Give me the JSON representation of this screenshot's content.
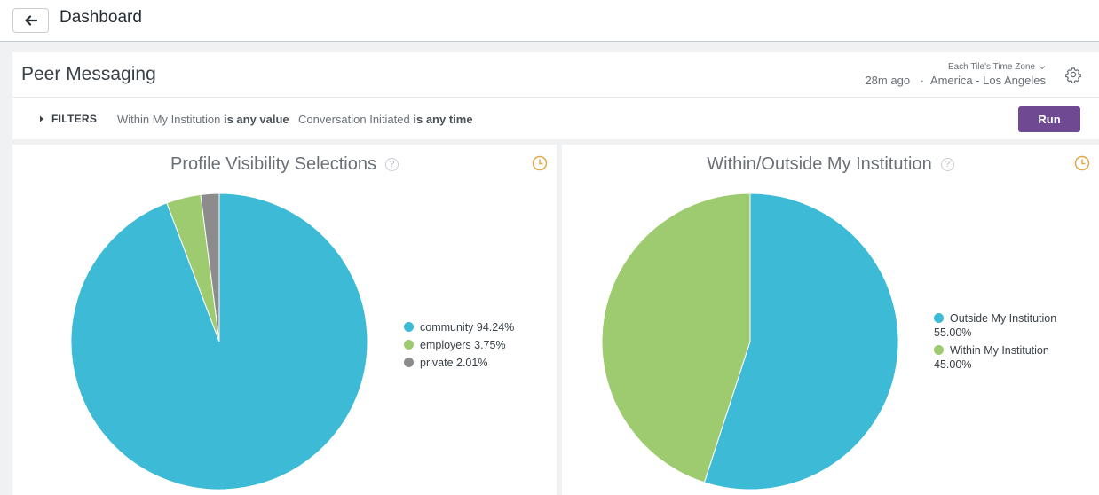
{
  "app": {
    "page_title": "Dashboard"
  },
  "dashboard": {
    "title": "Peer Messaging",
    "timezone": {
      "label": "Each Tile's Time Zone",
      "last_run": "28m ago",
      "value": "America - Los Angeles"
    },
    "filters": {
      "toggle_label": "FILTERS",
      "items": [
        {
          "field": "Within My Institution",
          "condition": "is any value"
        },
        {
          "field": "Conversation Initiated",
          "condition": "is any time"
        }
      ]
    },
    "run_label": "Run"
  },
  "icons": {
    "back": "arrow-left-icon",
    "gear": "gear-icon",
    "filters": "caret-right-icon",
    "help": "question-circle-icon",
    "clock": "clock-icon",
    "timezone_dropdown": "chevron-down-icon"
  },
  "colors": {
    "teal": "#3cbad6",
    "green": "#9ecb6f",
    "gray": "#8c8c8c",
    "run": "#6f4a93",
    "clock": "#e3a84a"
  },
  "chart_data": [
    {
      "type": "pie",
      "title": "Profile Visibility Selections",
      "help": "?",
      "series": [
        {
          "name": "community",
          "value": 94.24,
          "label": "community 94.24%",
          "color": "#3cbad6"
        },
        {
          "name": "employers",
          "value": 3.75,
          "label": "employers 3.75%",
          "color": "#9ecb6f"
        },
        {
          "name": "private",
          "value": 2.01,
          "label": "private 2.01%",
          "color": "#8c8c8c"
        }
      ]
    },
    {
      "type": "pie",
      "title": "Within/Outside My Institution",
      "help": "?",
      "series": [
        {
          "name": "Outside My Institution",
          "value": 55.0,
          "label": "Outside My Institution",
          "pct": "55.00%",
          "color": "#3cbad6"
        },
        {
          "name": "Within My Institution",
          "value": 45.0,
          "label": "Within My Institution",
          "pct": "45.00%",
          "color": "#9ecb6f"
        }
      ]
    }
  ]
}
